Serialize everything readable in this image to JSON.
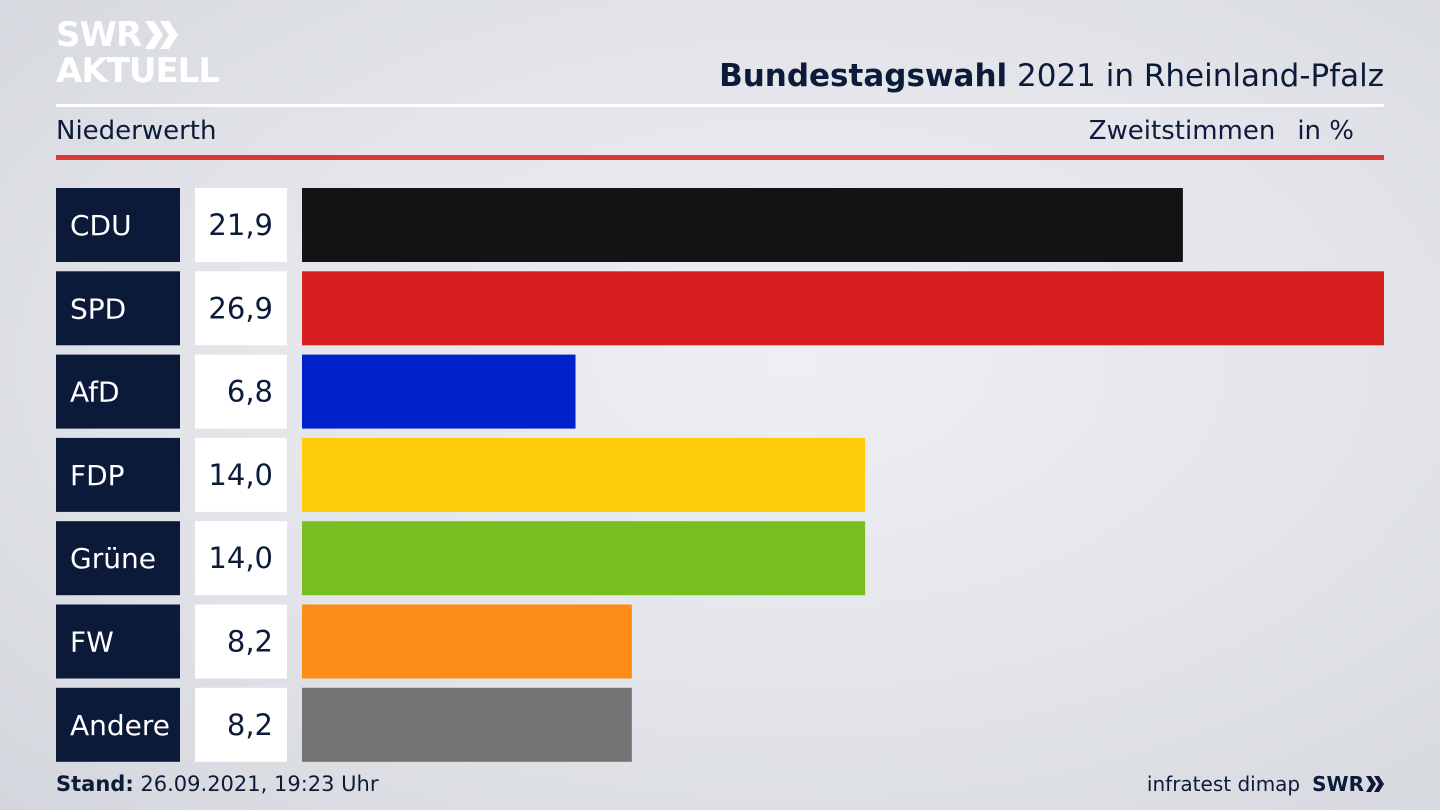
{
  "brand": {
    "line1": "SWR",
    "line2": "AKTUELL",
    "logo_color": "#ffffff"
  },
  "header": {
    "title_bold": "Bundestagswahl",
    "title_rest": " 2021 in Rheinland-Pfalz",
    "region": "Niederwerth",
    "vote_type": "Zweitstimmen",
    "unit": "in %"
  },
  "chart_data": {
    "type": "bar",
    "orientation": "horizontal",
    "categories": [
      "CDU",
      "SPD",
      "AfD",
      "FDP",
      "Grüne",
      "FW",
      "Andere"
    ],
    "values": [
      21.9,
      26.9,
      6.8,
      14.0,
      14.0,
      8.2,
      8.2
    ],
    "value_labels": [
      "21,9",
      "26,9",
      "6,8",
      "14,0",
      "14,0",
      "8,2",
      "8,2"
    ],
    "colors": [
      "#131313",
      "#d81f1f",
      "#0021c8",
      "#fdcc0b",
      "#78be20",
      "#fd8c16",
      "#737374"
    ],
    "label_bg": "#0c1a3a",
    "xlim": [
      0,
      26.9
    ],
    "grid": false,
    "legend": "none"
  },
  "footer": {
    "stand_label": "Stand:",
    "stand_value": " 26.09.2021, 19:23 Uhr",
    "source": "infratest dimap",
    "brand_small": "SWR"
  }
}
